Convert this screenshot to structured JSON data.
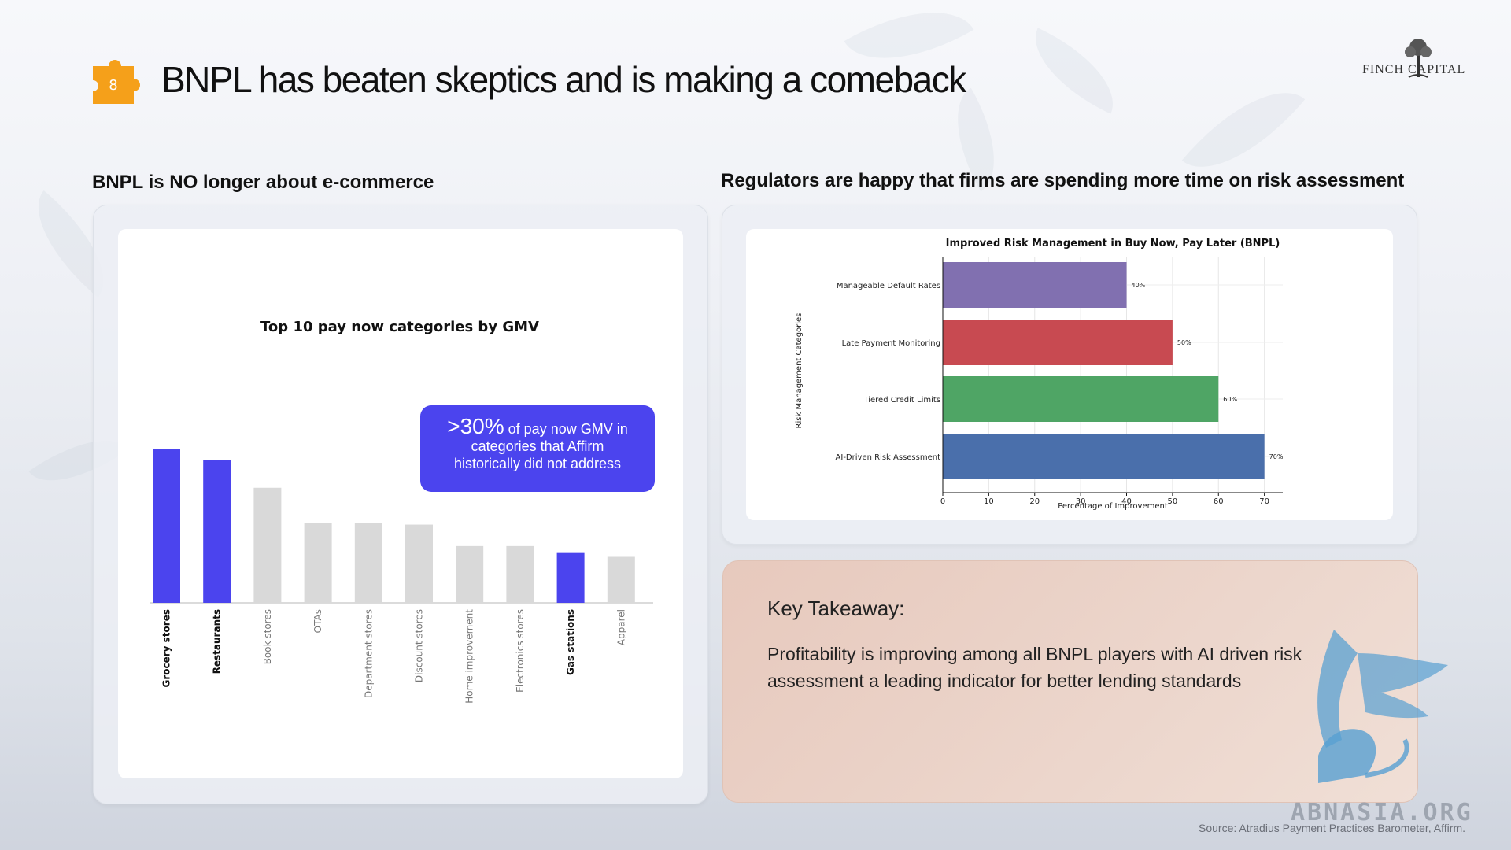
{
  "header": {
    "badge_number": "8",
    "title": "BNPL has beaten skeptics and is making a comeback",
    "logo_text": "FINCH CAPITAL"
  },
  "left": {
    "subhead": "BNPL is NO longer about e-commerce",
    "callout": {
      "big": ">30%",
      "rest_line1": " of pay now GMV in",
      "line2": "categories that Affirm",
      "line3": "historically did not address"
    }
  },
  "right": {
    "subhead": "Regulators are happy that firms are spending more time on risk assessment"
  },
  "takeaway": {
    "title": "Key Takeaway:",
    "body": "Profitability is improving among all BNPL players with AI driven risk assessment a leading indicator for better lending standards"
  },
  "source": "Source: Atradius Payment Practices Barometer, Affirm.",
  "watermark": "ABNASIA.ORG",
  "colors": {
    "highlight": "#4b44ee",
    "muted": "#d9d9d9",
    "badge": "#f5a01a"
  },
  "chart_data": [
    {
      "type": "bar",
      "title": "Top 10 pay now categories by GMV",
      "categories": [
        "Grocery stores",
        "Restaurants",
        "Book stores",
        "OTAs",
        "Department stores",
        "Discount stores",
        "Home improvement",
        "Electronics stores",
        "Gas stations",
        "Apparel"
      ],
      "values": [
        100,
        93,
        75,
        52,
        52,
        51,
        37,
        37,
        33,
        30
      ],
      "highlighted": [
        true,
        true,
        false,
        false,
        false,
        false,
        false,
        false,
        true,
        false
      ],
      "xlabel": "",
      "ylabel": "",
      "ylim": [
        0,
        100
      ],
      "grid": false
    },
    {
      "type": "bar",
      "orientation": "horizontal",
      "title": "Improved Risk Management in Buy Now, Pay Later (BNPL)",
      "categories": [
        "Manageable Default Rates",
        "Late Payment Monitoring",
        "Tiered Credit Limits",
        "AI-Driven Risk Assessment"
      ],
      "values": [
        40,
        50,
        60,
        70
      ],
      "data_labels": [
        "40%",
        "50%",
        "60%",
        "70%"
      ],
      "colors": [
        "#8170b0",
        "#c84a51",
        "#4fa565",
        "#4a6fab"
      ],
      "xlabel": "Percentage of Improvement",
      "ylabel": "Risk Management Categories",
      "xticks": [
        0,
        10,
        20,
        30,
        40,
        50,
        60,
        70
      ],
      "xlim": [
        0,
        74
      ],
      "grid": true
    }
  ]
}
